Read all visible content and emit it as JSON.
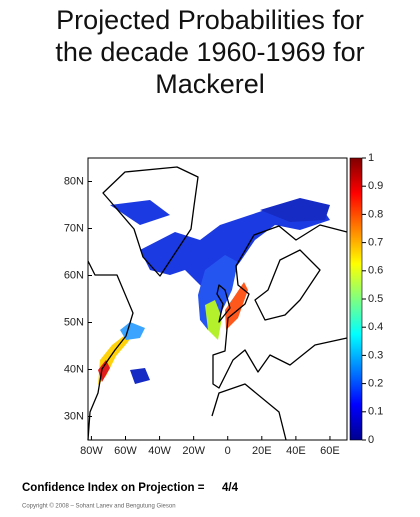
{
  "title_lines": [
    "Projected Probabilities for",
    "the decade 1960-1969 for",
    "Mackerel"
  ],
  "map": {
    "xlim": [
      -82,
      70
    ],
    "ylim": [
      25,
      85
    ],
    "xticks": [
      {
        "value": -80,
        "label": "80W"
      },
      {
        "value": -60,
        "label": "60W"
      },
      {
        "value": -40,
        "label": "40W"
      },
      {
        "value": -20,
        "label": "20W"
      },
      0,
      {
        "value": 20,
        "label": "20E"
      },
      {
        "value": 40,
        "label": "40E"
      },
      {
        "value": 60,
        "label": "60E"
      }
    ],
    "yticks": [
      {
        "value": 30,
        "label": "30N"
      },
      {
        "value": 40,
        "label": "40N"
      },
      {
        "value": 50,
        "label": "50N"
      },
      {
        "value": 60,
        "label": "60N"
      },
      {
        "value": 70,
        "label": "70N"
      },
      {
        "value": 80,
        "label": "80N"
      }
    ]
  },
  "colorbar": {
    "lim": [
      0,
      1
    ],
    "ticks": [
      0,
      0.1,
      0.2,
      0.3,
      0.4,
      0.5,
      0.6,
      0.7,
      0.8,
      0.9,
      1
    ],
    "colormap": "jet"
  },
  "footer": {
    "confidence_label": "Confidence Index on Projection =",
    "confidence_value": "4/4",
    "copyright": "Copyright © 2008 – Sohant Lanev and Bengutung Gieson"
  }
}
